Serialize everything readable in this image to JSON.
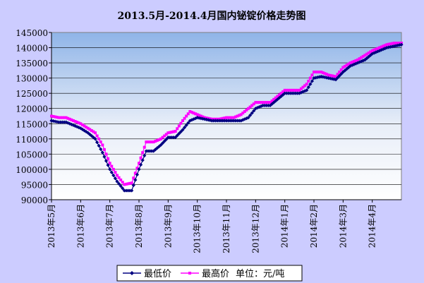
{
  "chart_data": {
    "type": "line",
    "title": "2013.5月-2014.4月国内铋锭价格走势图",
    "xlabel": "",
    "ylabel": "",
    "ylim": [
      90000,
      145000
    ],
    "y_ticks": [
      90000,
      95000,
      100000,
      105000,
      110000,
      115000,
      120000,
      125000,
      130000,
      135000,
      140000,
      145000
    ],
    "y_tick_labels": [
      "90000",
      "95000",
      "100000",
      "105000",
      "110000",
      "115000",
      "120000",
      "125000",
      "130000",
      "135000",
      "140000",
      "145000"
    ],
    "x_tick_labels": [
      "2013年5月",
      "2013年6月",
      "2013年7月",
      "2013年8月",
      "2013年9月",
      "2013年10月",
      "2013年11月",
      "2013年12月",
      "2014年1月",
      "2014年2月",
      "2014年3月",
      "2014年4月"
    ],
    "grid": true,
    "legend_position": "bottom",
    "legend_suffix": "单位：元/吨",
    "x": [
      0,
      0.25,
      0.5,
      0.75,
      1,
      1.25,
      1.5,
      1.75,
      2,
      2.25,
      2.5,
      2.75,
      3,
      3.25,
      3.5,
      3.75,
      4,
      4.25,
      4.5,
      4.75,
      5,
      5.25,
      5.5,
      5.75,
      6,
      6.25,
      6.5,
      6.75,
      7,
      7.25,
      7.5,
      7.75,
      8,
      8.25,
      8.5,
      8.75,
      9,
      9.25,
      9.5,
      9.75,
      10,
      10.25,
      10.5,
      10.75,
      11,
      11.25,
      11.5,
      11.75,
      12
    ],
    "series": [
      {
        "name": "最低价",
        "color": "#000080",
        "values": [
          116000,
          115500,
          115500,
          114500,
          113500,
          112000,
          110000,
          105500,
          100000,
          96000,
          93000,
          93000,
          100000,
          106000,
          106000,
          108000,
          110500,
          110500,
          113000,
          116000,
          117000,
          116500,
          116000,
          116000,
          116000,
          116000,
          116000,
          117000,
          120000,
          121000,
          121000,
          123000,
          125000,
          125000,
          125000,
          126000,
          130000,
          130500,
          130000,
          129500,
          132000,
          134000,
          135000,
          136000,
          138000,
          139000,
          140000,
          140500,
          141000
        ]
      },
      {
        "name": "最高价",
        "color": "#ff00ff",
        "values": [
          117500,
          117000,
          117000,
          116000,
          115000,
          113500,
          112000,
          108000,
          102000,
          98000,
          95000,
          95500,
          102000,
          109000,
          109000,
          110000,
          112000,
          112500,
          116000,
          119000,
          118000,
          117000,
          116500,
          116500,
          117000,
          117000,
          118000,
          120000,
          122000,
          122000,
          122000,
          124000,
          126000,
          126000,
          126000,
          128000,
          132000,
          132000,
          131000,
          130500,
          133500,
          135000,
          136000,
          137500,
          139000,
          140000,
          141000,
          141500,
          141500
        ]
      }
    ]
  }
}
